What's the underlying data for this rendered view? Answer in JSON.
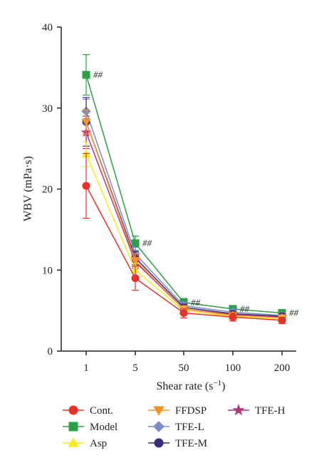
{
  "chart_data": {
    "type": "line",
    "title": "",
    "xlabel": "Shear rate (s",
    "xlabel_sup": "−1",
    "xlabel_close": ")",
    "ylabel": "WBV (mPa·s)",
    "categories": [
      "1",
      "5",
      "50",
      "100",
      "200"
    ],
    "ylim": [
      0,
      40
    ],
    "yticks": [
      0,
      10,
      20,
      30,
      40
    ],
    "grid": false,
    "legend_position": "bottom",
    "series": [
      {
        "name": "Cont.",
        "color": "#e8312a",
        "marker": "circle",
        "values": [
          20.4,
          9.0,
          4.7,
          4.2,
          3.8
        ],
        "errors": [
          4.0,
          1.5,
          0.6,
          0.5,
          0.4
        ]
      },
      {
        "name": "Model",
        "color": "#2ca044",
        "marker": "square",
        "values": [
          34.1,
          13.3,
          6.0,
          5.2,
          4.7
        ],
        "errors": [
          2.5,
          0.9,
          0.5,
          0.4,
          0.3
        ]
      },
      {
        "name": "Asp",
        "color": "#f4ea2a",
        "marker": "triangle-up",
        "values": [
          24.3,
          10.0,
          5.0,
          4.3,
          4.0
        ],
        "errors": [
          1.5,
          0.8,
          0.4,
          0.3,
          0.3
        ]
      },
      {
        "name": "FFDSP",
        "color": "#f5922a",
        "marker": "triangle-down",
        "values": [
          28.3,
          11.2,
          5.2,
          4.4,
          4.1
        ],
        "errors": [
          1.5,
          0.8,
          0.4,
          0.4,
          0.3
        ]
      },
      {
        "name": "TFE-L",
        "color": "#7b8dc8",
        "marker": "diamond",
        "values": [
          29.6,
          12.0,
          5.6,
          4.8,
          4.4
        ],
        "errors": [
          1.5,
          0.8,
          0.4,
          0.3,
          0.3
        ]
      },
      {
        "name": "TFE-M",
        "color": "#3b2a7f",
        "marker": "circle",
        "values": [
          28.3,
          11.5,
          5.4,
          4.6,
          4.3
        ],
        "errors": [
          3.0,
          0.8,
          0.4,
          0.3,
          0.3
        ]
      },
      {
        "name": "TFE-H",
        "color": "#b5347c",
        "marker": "star",
        "values": [
          27.0,
          11.0,
          5.2,
          4.5,
          4.2
        ],
        "errors": [
          2.0,
          0.8,
          0.4,
          0.3,
          0.3
        ]
      }
    ],
    "annotations": [
      {
        "text": "##",
        "category": "1",
        "y": 34.1
      },
      {
        "text": "##",
        "category": "5",
        "y": 13.3
      },
      {
        "text": "##",
        "category": "50",
        "y": 6.0
      },
      {
        "text": "##",
        "category": "100",
        "y": 5.2
      },
      {
        "text": "##",
        "category": "200",
        "y": 4.7
      }
    ]
  }
}
